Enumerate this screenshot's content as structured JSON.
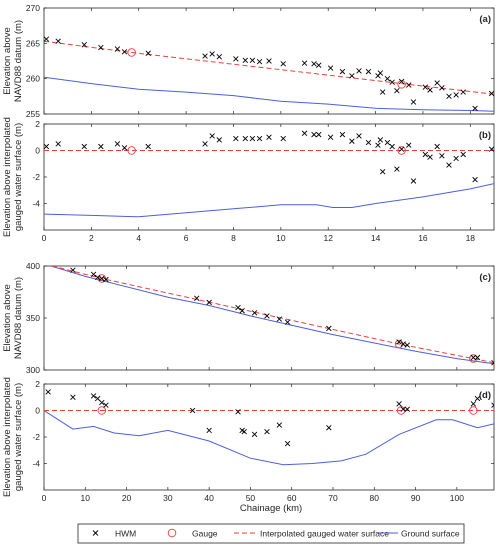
{
  "colors": {
    "hwm": "#000000",
    "gauge": "#e8413c",
    "interp": "#e8413c",
    "ground": "#4b5fe0",
    "axis": "#262626"
  },
  "legend": {
    "hwm": "HWM",
    "gauge": "Gauge",
    "interp": "Interpolated gauged water surface",
    "ground": "Ground surface"
  },
  "chart_data": [
    {
      "panel": "(a)",
      "type": "scatter",
      "xlabel": "",
      "ylabel": [
        "Elevation above",
        "NAVD88 datum (m)"
      ],
      "xlim": [
        0,
        19
      ],
      "ylim": [
        255,
        270
      ],
      "xticks": [
        0,
        2,
        4,
        6,
        8,
        10,
        12,
        14,
        16,
        18
      ],
      "show_xticklabels": false,
      "yticks": [
        255,
        260,
        265,
        270
      ],
      "ytick_labels": [
        "255",
        "260",
        "265",
        "270"
      ],
      "hwm": [
        [
          0.1,
          265.6
        ],
        [
          0.6,
          265.3
        ],
        [
          1.7,
          264.8
        ],
        [
          2.4,
          264.4
        ],
        [
          3.1,
          264.2
        ],
        [
          3.4,
          263.8
        ],
        [
          4.4,
          263.6
        ],
        [
          6.8,
          263.2
        ],
        [
          7.1,
          263.5
        ],
        [
          7.4,
          263.1
        ],
        [
          8.1,
          262.8
        ],
        [
          8.5,
          262.6
        ],
        [
          8.8,
          262.6
        ],
        [
          9.1,
          262.4
        ],
        [
          9.5,
          262.5
        ],
        [
          10.1,
          262.1
        ],
        [
          11.0,
          262.2
        ],
        [
          11.4,
          262.1
        ],
        [
          11.6,
          261.9
        ],
        [
          12.1,
          261.5
        ],
        [
          12.6,
          261.0
        ],
        [
          13.0,
          260.4
        ],
        [
          13.3,
          261.1
        ],
        [
          13.7,
          261.0
        ],
        [
          14.1,
          260.4
        ],
        [
          14.2,
          260.8
        ],
        [
          14.3,
          258.1
        ],
        [
          14.5,
          260.0
        ],
        [
          14.7,
          259.5
        ],
        [
          14.9,
          258.3
        ],
        [
          15.1,
          259.6
        ],
        [
          15.4,
          259.1
        ],
        [
          15.6,
          256.7
        ],
        [
          16.1,
          258.8
        ],
        [
          16.3,
          258.4
        ],
        [
          16.6,
          259.4
        ],
        [
          16.8,
          258.7
        ],
        [
          17.1,
          257.5
        ],
        [
          17.4,
          257.7
        ],
        [
          17.7,
          258.1
        ],
        [
          18.2,
          255.8
        ],
        [
          18.9,
          257.9
        ]
      ],
      "gauges": [
        [
          3.7,
          263.7
        ],
        [
          15.1,
          259.2
        ]
      ],
      "interp": [
        [
          0,
          265.3
        ],
        [
          3.7,
          263.7
        ],
        [
          15.1,
          259.3
        ],
        [
          19,
          257.8
        ]
      ],
      "ground": [
        [
          0,
          260.2
        ],
        [
          2,
          259.3
        ],
        [
          4,
          258.5
        ],
        [
          6,
          258.1
        ],
        [
          8,
          257.6
        ],
        [
          10,
          256.8
        ],
        [
          12,
          256.4
        ],
        [
          14,
          255.8
        ],
        [
          16,
          255.6
        ],
        [
          18,
          255.5
        ],
        [
          19,
          255.4
        ]
      ]
    },
    {
      "panel": "(b)",
      "type": "scatter",
      "xlabel": "",
      "ylabel": [
        "Elevation above interpolated",
        "gauged water surface (m)"
      ],
      "xlim": [
        0,
        19
      ],
      "ylim": [
        -6,
        2
      ],
      "xticks": [
        0,
        2,
        4,
        6,
        8,
        10,
        12,
        14,
        16,
        18
      ],
      "show_xticklabels": true,
      "xtick_labels": [
        "0",
        "2",
        "4",
        "6",
        "8",
        "10",
        "12",
        "14",
        "16",
        "18"
      ],
      "yticks": [
        -4,
        -2,
        0,
        2
      ],
      "ytick_labels": [
        "-4",
        "-2",
        "0",
        "2"
      ],
      "hwm": [
        [
          0.1,
          0.3
        ],
        [
          0.6,
          0.5
        ],
        [
          1.7,
          0.3
        ],
        [
          2.4,
          0.3
        ],
        [
          3.1,
          0.5
        ],
        [
          3.4,
          0.2
        ],
        [
          4.4,
          0.3
        ],
        [
          6.8,
          0.5
        ],
        [
          7.1,
          1.1
        ],
        [
          7.4,
          0.8
        ],
        [
          8.1,
          0.9
        ],
        [
          8.5,
          0.9
        ],
        [
          8.8,
          0.9
        ],
        [
          9.1,
          0.9
        ],
        [
          9.5,
          1.0
        ],
        [
          10.1,
          0.9
        ],
        [
          11.0,
          1.3
        ],
        [
          11.4,
          1.2
        ],
        [
          11.6,
          1.2
        ],
        [
          12.1,
          1.0
        ],
        [
          12.6,
          1.2
        ],
        [
          13.0,
          0.7
        ],
        [
          13.3,
          1.1
        ],
        [
          13.7,
          0.6
        ],
        [
          14.1,
          0.4
        ],
        [
          14.2,
          0.8
        ],
        [
          14.3,
          -1.6
        ],
        [
          14.5,
          0.6
        ],
        [
          14.7,
          0.3
        ],
        [
          14.9,
          -1.4
        ],
        [
          15.1,
          0.1
        ],
        [
          15.4,
          0.4
        ],
        [
          15.6,
          -2.3
        ],
        [
          16.1,
          -0.3
        ],
        [
          16.3,
          -0.5
        ],
        [
          16.6,
          0.3
        ],
        [
          16.8,
          -0.4
        ],
        [
          17.1,
          -1.1
        ],
        [
          17.4,
          -0.6
        ],
        [
          17.7,
          -0.3
        ],
        [
          18.2,
          -2.2
        ],
        [
          18.9,
          0.1
        ]
      ],
      "gauges": [
        [
          3.7,
          0
        ],
        [
          15.1,
          0
        ]
      ],
      "interp": [
        [
          0,
          0
        ],
        [
          19,
          0
        ]
      ],
      "ground": [
        [
          0,
          -4.8
        ],
        [
          2,
          -4.9
        ],
        [
          4,
          -5.0
        ],
        [
          6,
          -4.7
        ],
        [
          8,
          -4.4
        ],
        [
          10,
          -4.1
        ],
        [
          11.5,
          -4.1
        ],
        [
          12.2,
          -4.3
        ],
        [
          13,
          -4.3
        ],
        [
          14,
          -4.0
        ],
        [
          16,
          -3.5
        ],
        [
          18,
          -2.9
        ],
        [
          19,
          -2.5
        ]
      ]
    },
    {
      "panel": "(c)",
      "type": "scatter",
      "xlabel": "",
      "ylabel": [
        "Elevation above",
        "NAVD88 datum (m)"
      ],
      "xlim": [
        0,
        109
      ],
      "ylim": [
        300,
        400
      ],
      "xticks": [
        0,
        10,
        20,
        30,
        40,
        50,
        60,
        70,
        80,
        90,
        100
      ],
      "show_xticklabels": false,
      "yticks": [
        300,
        350,
        400
      ],
      "ytick_labels": [
        "300",
        "350",
        "400"
      ],
      "hwm": [
        [
          1,
          403
        ],
        [
          7,
          396
        ],
        [
          12,
          392
        ],
        [
          13,
          389
        ],
        [
          14,
          388
        ],
        [
          15,
          387
        ],
        [
          37,
          369
        ],
        [
          40,
          365
        ],
        [
          47,
          360
        ],
        [
          48,
          357
        ],
        [
          51,
          355
        ],
        [
          54,
          352
        ],
        [
          57,
          349
        ],
        [
          59,
          346
        ],
        [
          69,
          340
        ],
        [
          86,
          327
        ],
        [
          87,
          325
        ],
        [
          88,
          324
        ],
        [
          104,
          312
        ],
        [
          105,
          312
        ],
        [
          109,
          307
        ]
      ],
      "gauges": [
        [
          14,
          388
        ],
        [
          86,
          325
        ],
        [
          104,
          311
        ]
      ],
      "interp": [
        [
          0,
          402
        ],
        [
          14,
          388
        ],
        [
          86,
          325
        ],
        [
          104,
          311
        ],
        [
          109,
          307
        ]
      ],
      "ground": [
        [
          0,
          402
        ],
        [
          10,
          390
        ],
        [
          20,
          380
        ],
        [
          30,
          370
        ],
        [
          40,
          362
        ],
        [
          50,
          352
        ],
        [
          60,
          343
        ],
        [
          70,
          334
        ],
        [
          80,
          326
        ],
        [
          90,
          318
        ],
        [
          100,
          311
        ],
        [
          109,
          306
        ]
      ]
    },
    {
      "panel": "(d)",
      "type": "scatter",
      "xlabel": "Chainage (km)",
      "ylabel": [
        "Elevation above interpolated",
        "gauged water surface (m)"
      ],
      "xlim": [
        0,
        109
      ],
      "ylim": [
        -6,
        2
      ],
      "xticks": [
        0,
        10,
        20,
        30,
        40,
        50,
        60,
        70,
        80,
        90,
        100
      ],
      "show_xticklabels": true,
      "xtick_labels": [
        "0",
        "10",
        "20",
        "30",
        "40",
        "50",
        "60",
        "70",
        "80",
        "90",
        "100"
      ],
      "yticks": [
        -4,
        -2,
        0,
        2
      ],
      "ytick_labels": [
        "-4",
        "-2",
        "0",
        "2"
      ],
      "hwm": [
        [
          1,
          1.4
        ],
        [
          7,
          1.0
        ],
        [
          12,
          1.1
        ],
        [
          13,
          0.9
        ],
        [
          14,
          0.6
        ],
        [
          15,
          0.4
        ],
        [
          36,
          0.0
        ],
        [
          40,
          -1.5
        ],
        [
          47,
          -0.1
        ],
        [
          48,
          -1.5
        ],
        [
          48.5,
          -1.6
        ],
        [
          51,
          -1.8
        ],
        [
          54,
          -1.6
        ],
        [
          57,
          -1.1
        ],
        [
          59,
          -2.5
        ],
        [
          69,
          -1.3
        ],
        [
          86,
          0.5
        ],
        [
          87,
          0.1
        ],
        [
          88,
          0.1
        ],
        [
          104,
          0.5
        ],
        [
          105,
          0.9
        ],
        [
          109,
          0.4
        ]
      ],
      "gauges": [
        [
          14,
          0
        ],
        [
          86.5,
          0
        ],
        [
          104,
          0
        ]
      ],
      "interp": [
        [
          0,
          0
        ],
        [
          109,
          0
        ]
      ],
      "ground": [
        [
          0,
          0
        ],
        [
          7,
          -1.4
        ],
        [
          12,
          -1.2
        ],
        [
          17,
          -1.7
        ],
        [
          23,
          -1.9
        ],
        [
          30,
          -1.5
        ],
        [
          40,
          -2.3
        ],
        [
          50,
          -3.6
        ],
        [
          58,
          -4.1
        ],
        [
          65,
          -4.0
        ],
        [
          72,
          -3.8
        ],
        [
          78,
          -3.3
        ],
        [
          86,
          -1.8
        ],
        [
          95,
          -0.7
        ],
        [
          99,
          -0.7
        ],
        [
          105,
          -1.3
        ],
        [
          109,
          -1.0
        ]
      ]
    }
  ]
}
